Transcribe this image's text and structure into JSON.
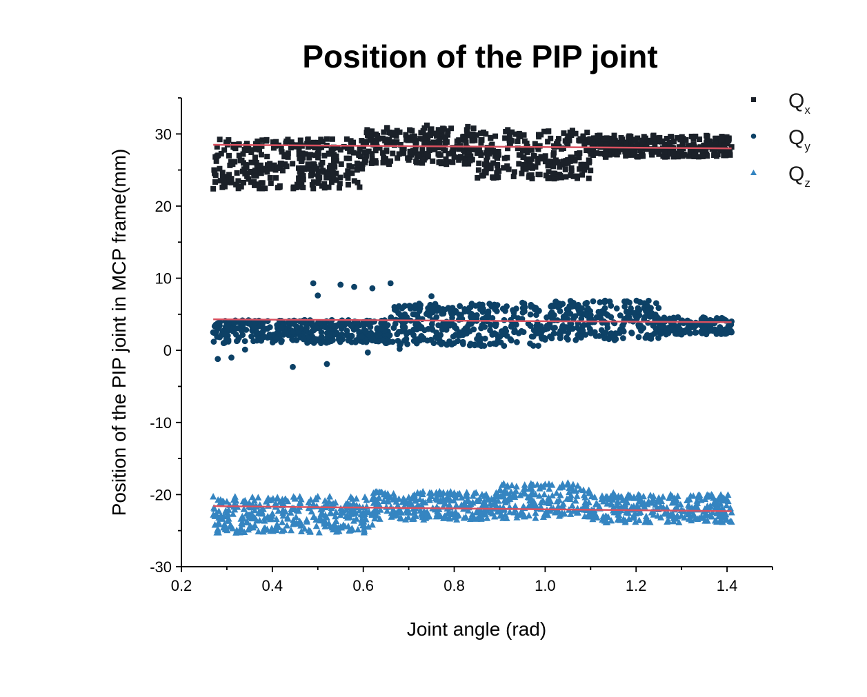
{
  "chart_data": {
    "type": "scatter",
    "title": "Position of the PIP joint",
    "xlabel": "Joint angle (rad)",
    "ylabel": "Position of the PIP joint in MCP frame(mm)",
    "xlim": [
      0.2,
      1.5
    ],
    "ylim": [
      -30,
      35
    ],
    "x_ticks": [
      0.2,
      0.4,
      0.6,
      0.8,
      1.0,
      1.2,
      1.4
    ],
    "x_tick_labels": [
      "0.2",
      "0.4",
      "0.6",
      "0.8",
      "1.0",
      "1.2",
      "1.4"
    ],
    "y_ticks": [
      -30,
      -20,
      -10,
      0,
      10,
      20,
      30
    ],
    "y_tick_labels": [
      "-30",
      "-20",
      "-10",
      "0",
      "10",
      "20",
      "30"
    ],
    "legend_position": "top-right",
    "grid": false,
    "fit_color": "#d9505f",
    "series": [
      {
        "name": "Q",
        "subscript": "x",
        "marker": "square",
        "color": "#1b2129",
        "x_range": [
          0.27,
          1.41
        ],
        "fit": {
          "x": [
            0.27,
            1.41
          ],
          "y": [
            28.5,
            28.0
          ]
        },
        "points": [
          {
            "x": 0.27,
            "y": 22.4
          },
          {
            "x": 0.29,
            "y": 22.6
          },
          {
            "x": 0.31,
            "y": 23.8
          },
          {
            "x": 0.34,
            "y": 24.5
          },
          {
            "x": 0.38,
            "y": 25.2
          },
          {
            "x": 0.42,
            "y": 25.9
          },
          {
            "x": 0.46,
            "y": 26.6
          },
          {
            "x": 0.5,
            "y": 27.3
          },
          {
            "x": 0.52,
            "y": 29.3
          },
          {
            "x": 0.55,
            "y": 27.8
          },
          {
            "x": 0.6,
            "y": 28.6
          },
          {
            "x": 0.63,
            "y": 28.2
          },
          {
            "x": 0.67,
            "y": 30.1
          },
          {
            "x": 0.7,
            "y": 26.4
          },
          {
            "x": 0.74,
            "y": 31.2
          },
          {
            "x": 0.78,
            "y": 28.7
          },
          {
            "x": 0.8,
            "y": 26.8
          },
          {
            "x": 0.83,
            "y": 31.0
          },
          {
            "x": 0.88,
            "y": 29.4
          },
          {
            "x": 0.92,
            "y": 25.1
          },
          {
            "x": 0.97,
            "y": 24.3
          },
          {
            "x": 1.02,
            "y": 23.8
          },
          {
            "x": 1.05,
            "y": 29.7
          },
          {
            "x": 1.12,
            "y": 29.8
          },
          {
            "x": 1.2,
            "y": 28.3
          },
          {
            "x": 1.3,
            "y": 27.7
          },
          {
            "x": 1.41,
            "y": 28.2
          }
        ],
        "bands": [
          {
            "x0": 0.27,
            "x1": 0.6,
            "y0": 22.4,
            "y1": 29.3
          },
          {
            "x0": 0.6,
            "x1": 0.85,
            "y0": 25.8,
            "y1": 31.0
          },
          {
            "x0": 0.85,
            "x1": 1.1,
            "y0": 23.8,
            "y1": 30.6
          },
          {
            "x0": 1.1,
            "x1": 1.41,
            "y0": 26.8,
            "y1": 29.8
          }
        ]
      },
      {
        "name": "Q",
        "subscript": "y",
        "marker": "circle",
        "color": "#0d4166",
        "x_range": [
          0.27,
          1.41
        ],
        "fit": {
          "x": [
            0.27,
            1.41
          ],
          "y": [
            4.3,
            3.9
          ]
        },
        "points": [
          {
            "x": 0.27,
            "y": 2.5
          },
          {
            "x": 0.28,
            "y": -1.2
          },
          {
            "x": 0.31,
            "y": -1.0
          },
          {
            "x": 0.34,
            "y": 0.1
          },
          {
            "x": 0.38,
            "y": 1.8
          },
          {
            "x": 0.42,
            "y": 3.1
          },
          {
            "x": 0.445,
            "y": -2.3
          },
          {
            "x": 0.49,
            "y": 9.3
          },
          {
            "x": 0.5,
            "y": 7.6
          },
          {
            "x": 0.52,
            "y": -1.9
          },
          {
            "x": 0.55,
            "y": 9.1
          },
          {
            "x": 0.58,
            "y": 8.8
          },
          {
            "x": 0.61,
            "y": -0.3
          },
          {
            "x": 0.62,
            "y": 8.6
          },
          {
            "x": 0.66,
            "y": 9.3
          },
          {
            "x": 0.68,
            "y": 0.2
          },
          {
            "x": 0.75,
            "y": 7.5
          },
          {
            "x": 0.8,
            "y": 1.0
          },
          {
            "x": 0.95,
            "y": 6.6
          },
          {
            "x": 1.05,
            "y": 1.5
          },
          {
            "x": 1.18,
            "y": 6.8
          },
          {
            "x": 1.3,
            "y": 2.2
          },
          {
            "x": 1.41,
            "y": 2.5
          },
          {
            "x": 1.41,
            "y": 4.0
          }
        ],
        "bands": [
          {
            "x0": 0.27,
            "x1": 0.66,
            "y0": 1.0,
            "y1": 4.2
          },
          {
            "x0": 0.66,
            "x1": 1.0,
            "y0": 0.6,
            "y1": 6.5
          },
          {
            "x0": 1.0,
            "x1": 1.25,
            "y0": 1.4,
            "y1": 6.9
          },
          {
            "x0": 1.25,
            "x1": 1.41,
            "y0": 2.2,
            "y1": 4.6
          }
        ]
      },
      {
        "name": "Q",
        "subscript": "z",
        "marker": "triangle",
        "color": "#3585c1",
        "x_range": [
          0.27,
          1.41
        ],
        "fit": {
          "x": [
            0.27,
            1.41
          ],
          "y": [
            -21.6,
            -22.3
          ]
        },
        "points": [
          {
            "x": 0.27,
            "y": -20.3
          },
          {
            "x": 0.28,
            "y": -24.8
          },
          {
            "x": 0.3,
            "y": -21.0
          },
          {
            "x": 0.32,
            "y": -25.3
          },
          {
            "x": 0.35,
            "y": -23.0
          },
          {
            "x": 0.4,
            "y": -24.9
          },
          {
            "x": 0.45,
            "y": -20.6
          },
          {
            "x": 0.5,
            "y": -20.3
          },
          {
            "x": 0.55,
            "y": -24.5
          },
          {
            "x": 0.62,
            "y": -24.2
          },
          {
            "x": 0.7,
            "y": -20.4
          },
          {
            "x": 0.8,
            "y": -19.8
          },
          {
            "x": 0.9,
            "y": -19.4
          },
          {
            "x": 1.0,
            "y": -18.6
          },
          {
            "x": 1.05,
            "y": -18.4
          },
          {
            "x": 1.15,
            "y": -19.8
          },
          {
            "x": 1.25,
            "y": -20.8
          },
          {
            "x": 1.41,
            "y": -22.5
          },
          {
            "x": 1.41,
            "y": -23.8
          }
        ],
        "bands": [
          {
            "x0": 0.27,
            "x1": 0.62,
            "y0": -25.3,
            "y1": -20.3
          },
          {
            "x0": 0.62,
            "x1": 0.9,
            "y0": -23.5,
            "y1": -19.6
          },
          {
            "x0": 0.9,
            "x1": 1.1,
            "y0": -23.3,
            "y1": -18.5
          },
          {
            "x0": 1.1,
            "x1": 1.41,
            "y0": -23.9,
            "y1": -20.0
          }
        ]
      }
    ]
  }
}
